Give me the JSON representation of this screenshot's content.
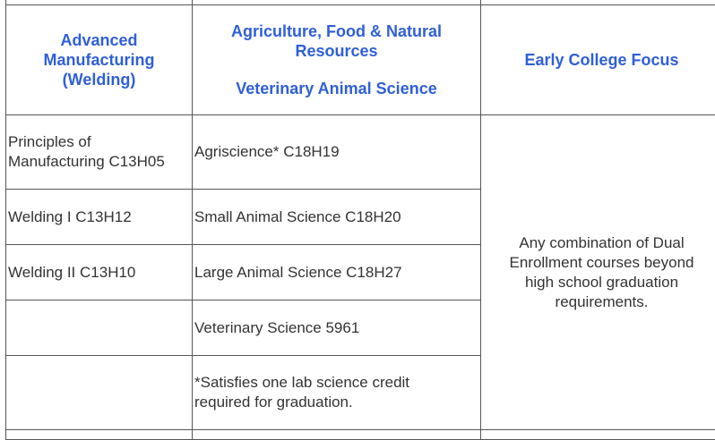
{
  "headers": {
    "col1": {
      "line1": "Advanced",
      "line2": "Manufacturing",
      "line3": "(Welding)"
    },
    "col2": {
      "line1": "Agriculture, Food & Natural",
      "line2": "Resources",
      "line3": "Veterinary Animal Science"
    },
    "col3": {
      "line1": "Early College Focus"
    }
  },
  "rows": [
    {
      "col1_line1": "Principles of",
      "col1_line2": "Manufacturing C13H05",
      "col2": "Agriscience* C18H19"
    },
    {
      "col1": "Welding I C13H12",
      "col2": "Small Animal Science C18H20"
    },
    {
      "col1": "Welding II C13H10",
      "col2": "Large Animal Science C18H27"
    },
    {
      "col1": "",
      "col2": "Veterinary Science 5961"
    },
    {
      "col1": "",
      "col2_line1": "*Satisfies one lab science credit",
      "col2_line2": "required for graduation."
    }
  ],
  "early_college": {
    "line1": "Any combination of Dual",
    "line2": "Enrollment courses beyond",
    "line3": "high school graduation",
    "line4": "requirements."
  },
  "colors": {
    "header_text": "#2f5fd8",
    "body_text": "#333333",
    "border": "#555555"
  }
}
